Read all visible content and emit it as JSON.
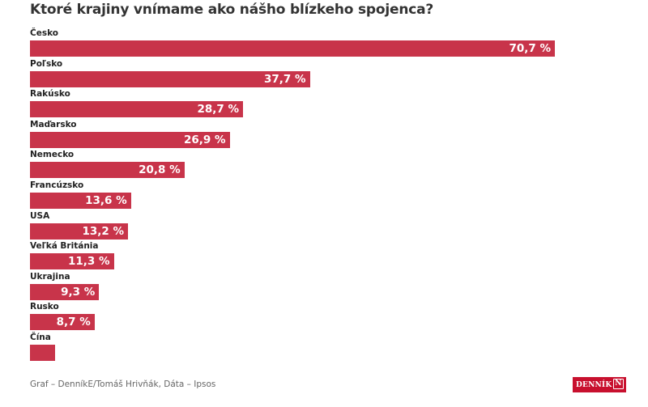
{
  "chart_data": {
    "type": "bar",
    "orientation": "horizontal",
    "title": "Ktoré krajiny vnímame ako nášho blízkeho spojenca?",
    "categories": [
      "Česko",
      "Poľsko",
      "Rakúsko",
      "Maďarsko",
      "Nemecko",
      "Francúzsko",
      "USA",
      "Veľká Británia",
      "Ukrajina",
      "Rusko",
      "Čína"
    ],
    "values": [
      70.7,
      37.7,
      28.7,
      26.9,
      20.8,
      13.6,
      13.2,
      11.3,
      9.3,
      8.7,
      3.4
    ],
    "value_labels": [
      "70,7 %",
      "37,7 %",
      "28,7 %",
      "26,9 %",
      "20,8 %",
      "13,6 %",
      "13,2 %",
      "11,3 %",
      "9,3 %",
      "8,7 %",
      ""
    ],
    "xlim": [
      0,
      100
    ],
    "grid": false,
    "bar_color": "#c8344a",
    "source": "Graf – DenníkE/Tomáš Hrivňák, Dáta – Ipsos"
  },
  "logo": {
    "text": "DENNÍK",
    "mark": "N",
    "color": "#c8102e"
  }
}
